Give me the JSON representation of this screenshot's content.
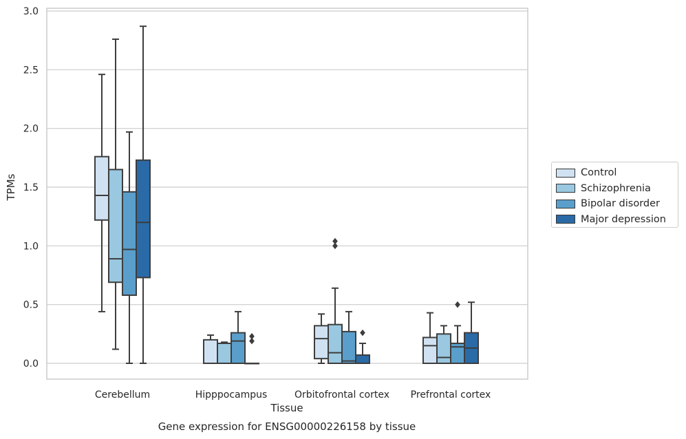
{
  "chart_data": {
    "type": "box",
    "title": "Gene expression for ENSG00000226158 by tissue",
    "xlabel": "Tissue",
    "ylabel": "TPMs",
    "ylim": [
      -0.13,
      3.02
    ],
    "yticks": [
      "0.0",
      "0.5",
      "1.0",
      "1.5",
      "2.0",
      "2.5",
      "3.0"
    ],
    "ytick_values": [
      0,
      0.5,
      1.0,
      1.5,
      2.0,
      2.5,
      3.0
    ],
    "grid": "horizontal",
    "legend_position": "right",
    "categories": [
      "Cerebellum",
      "Hipppocampus",
      "Orbitofrontal cortex",
      "Prefrontal cortex"
    ],
    "series": [
      {
        "name": "Control",
        "color": "#d0e1f2",
        "boxes": [
          {
            "whislo": 0.44,
            "q1": 1.22,
            "med": 1.43,
            "q3": 1.76,
            "whishi": 2.46,
            "fliers": []
          },
          {
            "whislo": 0.0,
            "q1": 0.0,
            "med": 0.0,
            "q3": 0.2,
            "whishi": 0.24,
            "fliers": []
          },
          {
            "whislo": 0.0,
            "q1": 0.04,
            "med": 0.21,
            "q3": 0.32,
            "whishi": 0.42,
            "fliers": []
          },
          {
            "whislo": 0.0,
            "q1": 0.0,
            "med": 0.15,
            "q3": 0.22,
            "whishi": 0.43,
            "fliers": []
          }
        ]
      },
      {
        "name": "Schizophrenia",
        "color": "#9ac8e0",
        "boxes": [
          {
            "whislo": 0.12,
            "q1": 0.69,
            "med": 0.89,
            "q3": 1.65,
            "whishi": 2.76,
            "fliers": []
          },
          {
            "whislo": 0.0,
            "q1": 0.0,
            "med": 0.0,
            "q3": 0.17,
            "whishi": 0.18,
            "fliers": []
          },
          {
            "whislo": 0.0,
            "q1": 0.0,
            "med": 0.09,
            "q3": 0.33,
            "whishi": 0.64,
            "fliers": [
              1.0,
              1.04
            ]
          },
          {
            "whislo": 0.0,
            "q1": 0.0,
            "med": 0.05,
            "q3": 0.25,
            "whishi": 0.32,
            "fliers": []
          }
        ]
      },
      {
        "name": "Bipolar disorder",
        "color": "#5a9fcb",
        "boxes": [
          {
            "whislo": 0.0,
            "q1": 0.58,
            "med": 0.97,
            "q3": 1.46,
            "whishi": 1.97,
            "fliers": []
          },
          {
            "whislo": 0.0,
            "q1": 0.0,
            "med": 0.19,
            "q3": 0.26,
            "whishi": 0.44,
            "fliers": []
          },
          {
            "whislo": 0.0,
            "q1": 0.0,
            "med": 0.02,
            "q3": 0.27,
            "whishi": 0.44,
            "fliers": []
          },
          {
            "whislo": 0.0,
            "q1": 0.0,
            "med": 0.14,
            "q3": 0.17,
            "whishi": 0.32,
            "fliers": [
              0.5
            ]
          }
        ]
      },
      {
        "name": "Major depression",
        "color": "#2a6aa7",
        "boxes": [
          {
            "whislo": 0.0,
            "q1": 0.73,
            "med": 1.2,
            "q3": 1.73,
            "whishi": 2.87,
            "fliers": []
          },
          {
            "whislo": 0.0,
            "q1": 0.0,
            "med": 0.0,
            "q3": 0.0,
            "whishi": 0.0,
            "fliers": [
              0.19,
              0.23
            ]
          },
          {
            "whislo": 0.0,
            "q1": 0.0,
            "med": 0.0,
            "q3": 0.07,
            "whishi": 0.17,
            "fliers": [
              0.26
            ]
          },
          {
            "whislo": 0.0,
            "q1": 0.0,
            "med": 0.13,
            "q3": 0.26,
            "whishi": 0.52,
            "fliers": []
          }
        ]
      }
    ]
  }
}
